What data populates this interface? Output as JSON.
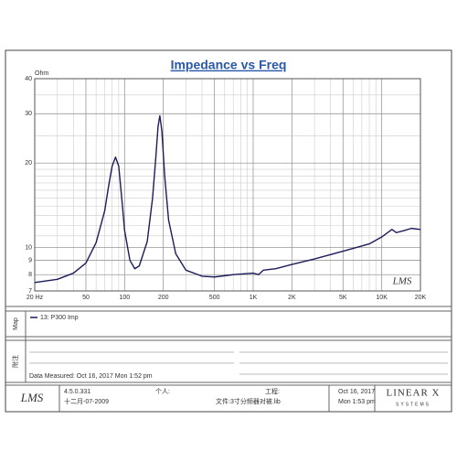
{
  "chart_data": {
    "type": "line",
    "title": "Impedance vs Freq",
    "y_unit": "Ohm",
    "x": [
      20,
      30,
      40,
      50,
      60,
      70,
      75,
      80,
      85,
      90,
      95,
      100,
      110,
      120,
      130,
      150,
      165,
      175,
      182,
      188,
      195,
      205,
      220,
      250,
      300,
      400,
      500,
      700,
      1000,
      1100,
      1200,
      1500,
      2000,
      3000,
      5000,
      8000,
      10000,
      12000,
      13000,
      15000,
      17000,
      20000
    ],
    "series": [
      {
        "name": "13: P300 Imp",
        "color": "#1c1c5a",
        "values": [
          7.5,
          7.7,
          8.1,
          8.8,
          10.4,
          13.5,
          16.5,
          19.5,
          21,
          19.5,
          15,
          11.5,
          9,
          8.4,
          8.6,
          10.5,
          15,
          21,
          27,
          29.5,
          26,
          18,
          12.5,
          9.5,
          8.3,
          7.9,
          7.85,
          8.0,
          8.1,
          8.0,
          8.3,
          8.4,
          8.7,
          9.1,
          9.7,
          10.3,
          10.9,
          11.6,
          11.3,
          11.5,
          11.7,
          11.6
        ]
      }
    ],
    "xlim": [
      20,
      20000
    ],
    "ylim": [
      7,
      40
    ],
    "xscale": "log",
    "yscale": "log",
    "grid": true,
    "xticks": [
      {
        "value": 20,
        "label": "20 Hz"
      },
      50,
      100,
      200,
      500,
      {
        "value": 1000,
        "label": "1K"
      },
      {
        "value": 2000,
        "label": "2K"
      },
      {
        "value": 5000,
        "label": "5K"
      },
      {
        "value": 10000,
        "label": "10K"
      },
      {
        "value": 20000,
        "label": "20K"
      }
    ],
    "x_minor_grid": [
      30,
      40,
      60,
      70,
      80,
      90,
      300,
      400,
      600,
      700,
      800,
      900,
      3000,
      4000,
      6000,
      7000,
      8000,
      9000
    ],
    "yticks": [
      7,
      8,
      9,
      10,
      20,
      30,
      40
    ],
    "y_minor_grid": [
      11,
      12,
      13,
      14,
      15,
      16,
      17,
      18,
      19,
      25,
      35
    ],
    "watermark": "LMS"
  },
  "side_labels": [
    "Map",
    "附注"
  ],
  "data_measured": "Data Measured: Oct 16, 2017  Mon 1:52 pm",
  "footer": {
    "logo": "LMS",
    "version": "4.5.0.331",
    "date": "十二月-07-2009",
    "personal": "个人:",
    "project": "工程:",
    "file": "文件:3寸分频器对被.lib",
    "print_date": "Oct 16, 2017",
    "print_time": "Mon 1:53 pm",
    "brand": "LINEAR X",
    "brand_sub": "SYSTEMS"
  }
}
